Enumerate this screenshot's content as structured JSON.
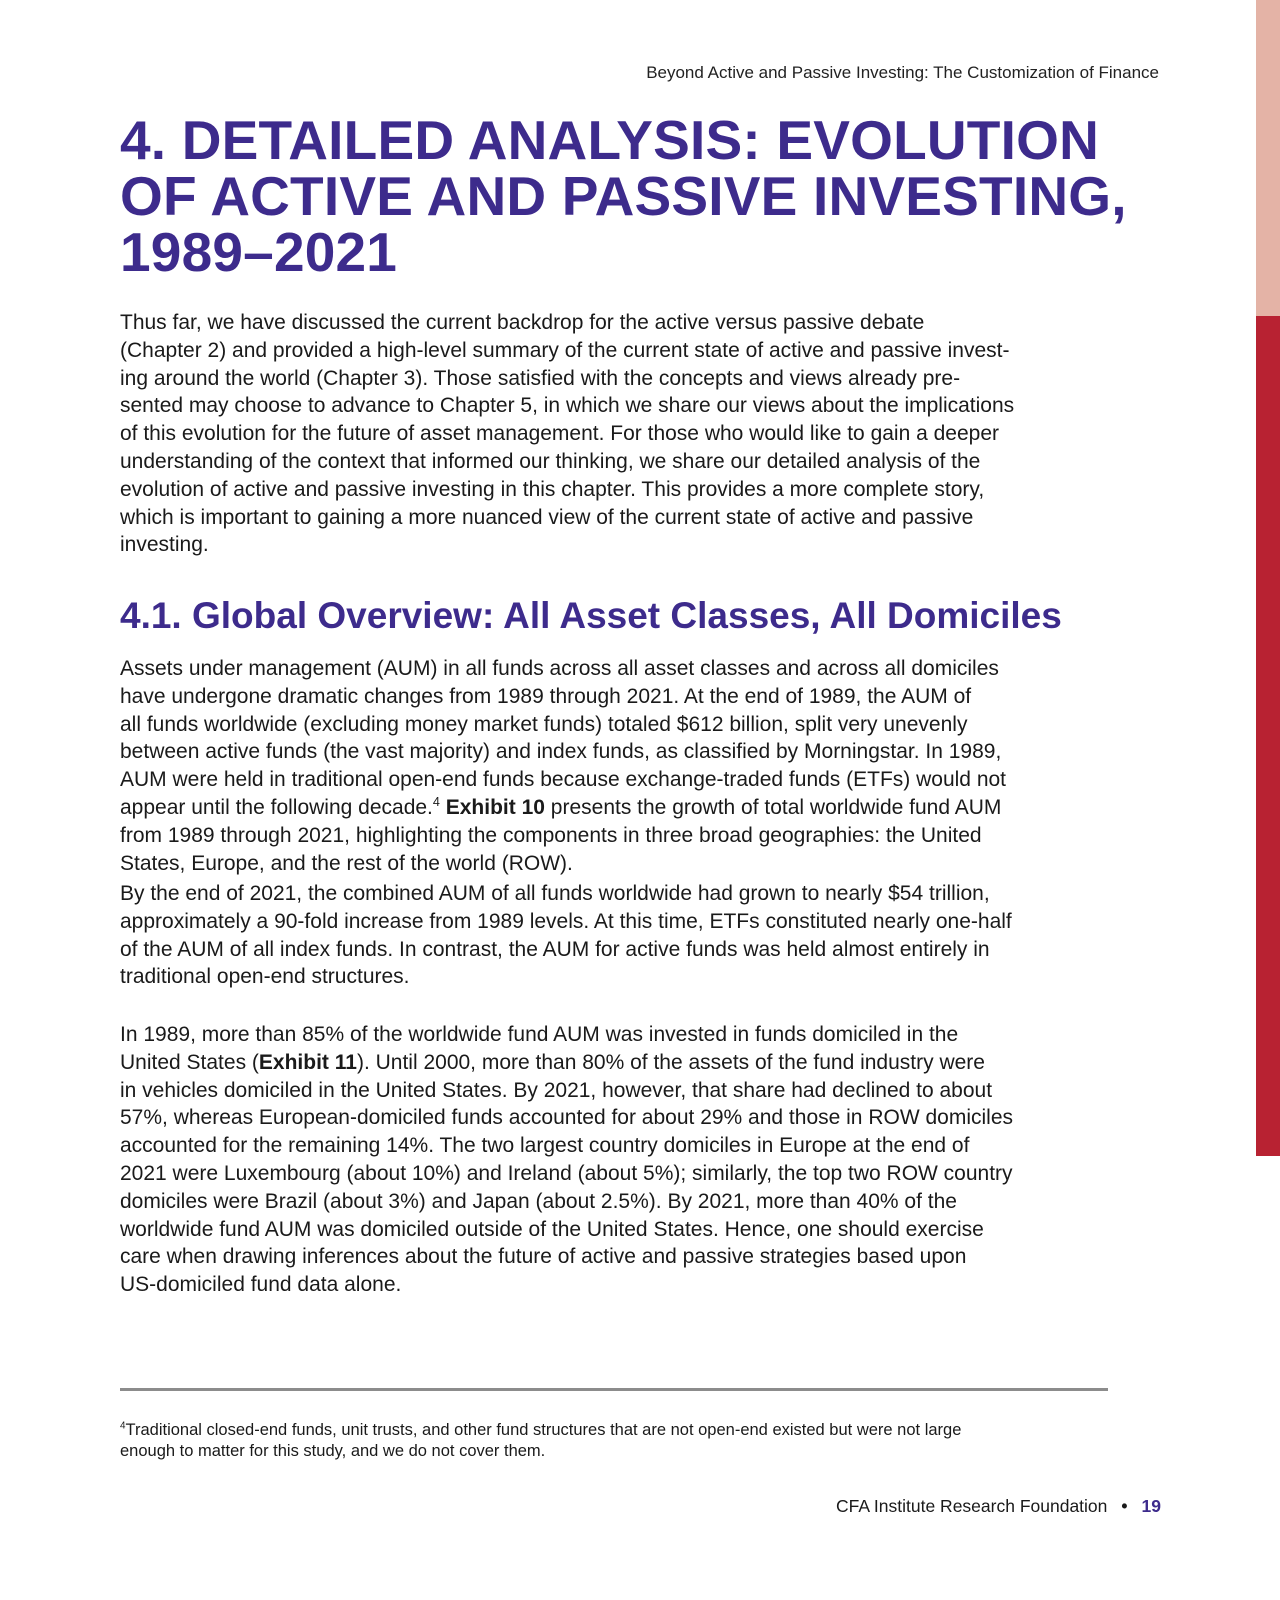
{
  "running_head": "Beyond Active and Passive Investing: The Customization of Finance",
  "chapter_title_lines": [
    "4. DETAILED ANALYSIS: EVOLUTION",
    "OF ACTIVE AND PASSIVE INVESTING,",
    "1989–2021"
  ],
  "intro_lines": [
    "Thus far, we have discussed the current backdrop for the active versus passive debate",
    "(Chapter 2) and provided a high-level summary of the current state of active and passive invest-",
    "ing around the world (Chapter 3). Those satisfied with the concepts and views already pre-",
    "sented may choose to advance to Chapter 5, in which we share our views about the implications",
    "of this evolution for the future of asset management. For those who would like to gain a deeper",
    "understanding of the context that informed our thinking, we share our detailed analysis of the",
    "evolution of active and passive investing in this chapter. This provides a more complete story,",
    "which is important to gaining a more nuanced view of the current state of active and passive",
    "investing."
  ],
  "section_title": "4.1. Global Overview: All Asset Classes, All Domiciles",
  "para1": {
    "lines_a": [
      "Assets under management (AUM) in all funds across all asset classes and across all domiciles",
      "have undergone dramatic changes from 1989 through 2021. At the end of 1989, the AUM of",
      "all funds worldwide (excluding money market funds) totaled $612 billion, split very unevenly",
      "between active funds (the vast majority) and index funds, as classified by Morningstar. In 1989,",
      "AUM were held in traditional open-end funds because exchange-traded funds (ETFs) would not"
    ],
    "line6_pre": "appear until the following decade.",
    "line6_sup": "4",
    "line6_bold": "Exhibit 10",
    "line6_post": " presents the growth of total worldwide fund AUM",
    "lines_b": [
      "from 1989 through 2021, highlighting the components in three broad geographies: the United",
      "States, Europe, and the rest of the world (ROW)."
    ]
  },
  "para2_lines": [
    "By the end of 2021, the combined AUM of all funds worldwide had grown to nearly $54 trillion,",
    "approximately a 90-fold increase from 1989 levels. At this time, ETFs constituted nearly one-half",
    "of the AUM of all index funds. In contrast, the AUM for active funds was held almost entirely in",
    "traditional open-end structures."
  ],
  "para3": {
    "line1": "In 1989, more than 85% of the worldwide fund AUM was invested in funds domiciled in the",
    "line2_pre": "United States (",
    "line2_bold": "Exhibit 11",
    "line2_post": "). Until 2000, more than 80% of the assets of the fund industry were",
    "lines_rest": [
      "in vehicles domiciled in the United States. By 2021, however, that share had declined to about",
      "57%, whereas European-domiciled funds accounted for about 29% and those in ROW domiciles",
      "accounted for the remaining 14%. The two largest country domiciles in Europe at the end of",
      "2021 were Luxembourg (about 10%) and Ireland (about 5%); similarly, the top two ROW country",
      "domiciles were Brazil (about 3%) and Japan (about 2.5%). By 2021, more than 40% of the",
      "worldwide fund AUM was domiciled outside of the United States. Hence, one should exercise",
      "care when drawing inferences about the future of active and passive strategies based upon",
      "US-domiciled fund data alone."
    ]
  },
  "footnote": {
    "marker": "4",
    "line1": "Traditional closed-end funds, unit trusts, and other fund structures that are not open-end existed but were not large",
    "line2": "enough to matter for this study, and we do not cover them."
  },
  "footer": {
    "org": "CFA Institute Research Foundation",
    "bullet": "•",
    "page": "19"
  },
  "colors": {
    "heading": "#3d2b8c",
    "side_bar_top": "#e4b3a6",
    "side_bar_bottom": "#b82232"
  }
}
